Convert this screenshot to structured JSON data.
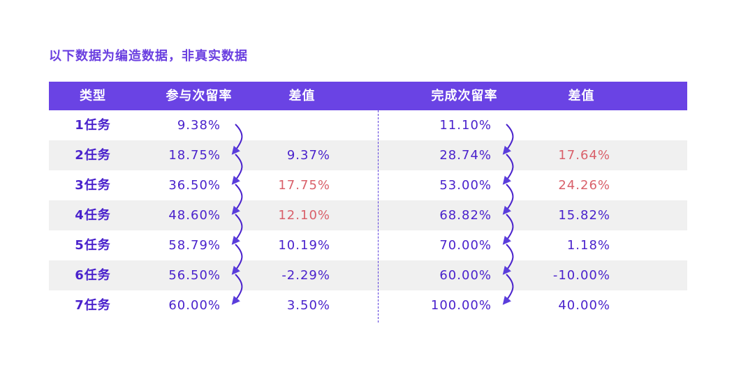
{
  "note": "以下数据为编造数据，非真实数据",
  "colors": {
    "header_bg": "#6a43e4",
    "text": "#4a22cc",
    "highlight": "#d9606a",
    "shade": "#f0f0f0"
  },
  "chart_data": {
    "type": "table",
    "columns": [
      "类型",
      "参与次留率",
      "差值",
      "完成次留率",
      "差值"
    ],
    "rows": [
      {
        "type": "1任务",
        "join_rate": "9.38%",
        "join_diff": "",
        "join_diff_red": false,
        "complete_rate": "11.10%",
        "complete_diff": "",
        "complete_diff_red": false
      },
      {
        "type": "2任务",
        "join_rate": "18.75%",
        "join_diff": "9.37%",
        "join_diff_red": false,
        "complete_rate": "28.74%",
        "complete_diff": "17.64%",
        "complete_diff_red": true
      },
      {
        "type": "3任务",
        "join_rate": "36.50%",
        "join_diff": "17.75%",
        "join_diff_red": true,
        "complete_rate": "53.00%",
        "complete_diff": "24.26%",
        "complete_diff_red": true
      },
      {
        "type": "4任务",
        "join_rate": "48.60%",
        "join_diff": "12.10%",
        "join_diff_red": true,
        "complete_rate": "68.82%",
        "complete_diff": "15.82%",
        "complete_diff_red": false
      },
      {
        "type": "5任务",
        "join_rate": "58.79%",
        "join_diff": "10.19%",
        "join_diff_red": false,
        "complete_rate": "70.00%",
        "complete_diff": "1.18%",
        "complete_diff_red": false
      },
      {
        "type": "6任务",
        "join_rate": "56.50%",
        "join_diff": "-2.29%",
        "join_diff_red": false,
        "complete_rate": "60.00%",
        "complete_diff": "-10.00%",
        "complete_diff_red": false
      },
      {
        "type": "7任务",
        "join_rate": "60.00%",
        "join_diff": "3.50%",
        "join_diff_red": false,
        "complete_rate": "100.00%",
        "complete_diff": "40.00%",
        "complete_diff_red": false
      }
    ]
  }
}
